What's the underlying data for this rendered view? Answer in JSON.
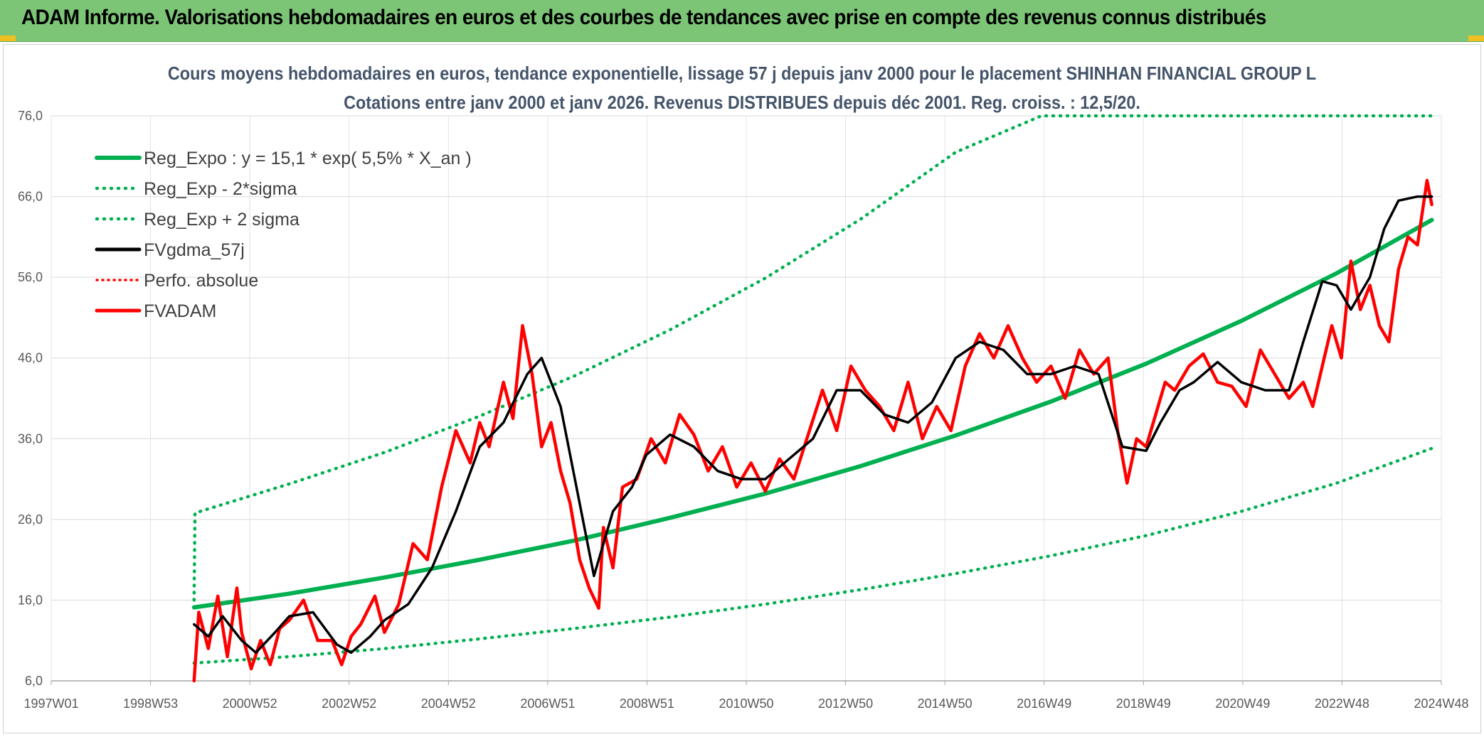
{
  "banner": {
    "title": "ADAM Informe. Valorisations hebdomadaires en euros et des courbes de tendances avec prise en compte des revenus connus distribués"
  },
  "colors": {
    "banner_bg": "#7cc576",
    "reg_expo": "#00b050",
    "fvgdma": "#000000",
    "fvadam": "#ff0000",
    "title": "#44546a"
  },
  "chart_data": {
    "type": "line",
    "title": "Cours moyens hebdomadaires en euros, tendance exponentielle, lissage 57 j depuis janv 2000 pour le placement SHINHAN FINANCIAL GROUP L",
    "subtitle": "Cotations entre janv 2000 et janv 2026. Revenus DISTRIBUES depuis déc 2001. Reg. croiss. : 12,5/20.",
    "xlabel": "",
    "ylabel": "",
    "x_ticks": [
      "1997W01",
      "1998W53",
      "2000W52",
      "2002W52",
      "2004W52",
      "2006W51",
      "2008W51",
      "2010W50",
      "2012W50",
      "2014W50",
      "2016W49",
      "2018W49",
      "2020W49",
      "2022W48",
      "2024W48"
    ],
    "y_ticks": [
      "76,0",
      "66,0",
      "56,0",
      "46,0",
      "36,0",
      "26,0",
      "16,0",
      "6,0"
    ],
    "ylim": [
      6,
      76
    ],
    "xlim": [
      1997.0,
      2026.2
    ],
    "grid": true,
    "legend_position": "top-left",
    "legend": [
      {
        "label": "Reg_Expo : y = 15,1 * exp( 5,5% *  X_an )",
        "color": "#00b050",
        "style": "solid"
      },
      {
        "label": "Reg_Exp - 2*sigma",
        "color": "#00b050",
        "style": "dotted"
      },
      {
        "label": "Reg_Exp + 2 sigma",
        "color": "#00b050",
        "style": "dotted"
      },
      {
        "label": "FVgdma_57j",
        "color": "#000000",
        "style": "solid"
      },
      {
        "label": "Perfo. absolue",
        "color": "#ff0000",
        "style": "dotted"
      },
      {
        "label": "FVADAM",
        "color": "#ff0000",
        "style": "solid"
      }
    ],
    "series": [
      {
        "name": "Reg_Expo : y = 15,1 * exp( 5,5% *  X_an )",
        "x": [
          2000.0,
          2002.0,
          2004.0,
          2006.0,
          2008.0,
          2010.0,
          2012.0,
          2014.0,
          2016.0,
          2018.0,
          2020.0,
          2022.0,
          2024.0,
          2026.0
        ],
        "values": [
          15.1,
          16.8,
          18.8,
          21.0,
          23.4,
          26.2,
          29.2,
          32.6,
          36.4,
          40.6,
          45.3,
          50.6,
          56.5,
          63.1
        ]
      },
      {
        "name": "Reg_Exp - 2*sigma",
        "x": [
          2000.0,
          2002.0,
          2004.0,
          2006.0,
          2008.0,
          2010.0,
          2012.0,
          2014.0,
          2016.0,
          2018.0,
          2020.0,
          2022.0,
          2024.0,
          2026.0
        ],
        "values": [
          8.2,
          9.0,
          10.0,
          11.2,
          12.5,
          13.9,
          15.5,
          17.3,
          19.3,
          21.5,
          24.0,
          27.0,
          30.5,
          34.8
        ]
      },
      {
        "name": "Reg_Exp + 2 sigma",
        "x": [
          2000.0,
          2000.02,
          2002.0,
          2004.0,
          2006.0,
          2008.0,
          2010.0,
          2012.0,
          2014.0,
          2016.0,
          2017.8,
          2026.0
        ],
        "values": [
          16.0,
          26.8,
          30.4,
          34.3,
          38.8,
          43.8,
          49.5,
          55.9,
          63.2,
          71.5,
          76.0,
          76.0
        ]
      },
      {
        "name": "FVgdma_57j",
        "x": [
          2000.0,
          2000.3,
          2000.6,
          2001.0,
          2001.3,
          2001.7,
          2002.0,
          2002.5,
          2003.0,
          2003.3,
          2003.7,
          2004.0,
          2004.5,
          2005.0,
          2005.5,
          2006.0,
          2006.5,
          2007.0,
          2007.3,
          2007.7,
          2008.0,
          2008.4,
          2008.8,
          2009.2,
          2009.5,
          2010.0,
          2010.5,
          2011.0,
          2011.5,
          2012.0,
          2012.5,
          2013.0,
          2013.5,
          2014.0,
          2014.5,
          2015.0,
          2015.5,
          2016.0,
          2016.5,
          2017.0,
          2017.5,
          2018.0,
          2018.5,
          2019.0,
          2019.5,
          2020.0,
          2020.3,
          2020.7,
          2021.0,
          2021.5,
          2022.0,
          2022.5,
          2023.0,
          2023.3,
          2023.7,
          2024.0,
          2024.3,
          2024.7,
          2025.0,
          2025.3,
          2025.7,
          2026.0
        ],
        "values": [
          13.0,
          11.5,
          14.0,
          11.0,
          9.5,
          12.0,
          14.0,
          14.5,
          10.5,
          9.5,
          11.5,
          13.5,
          15.5,
          20.0,
          27.0,
          35.0,
          38.0,
          44.0,
          46.0,
          40.0,
          31.0,
          19.0,
          27.0,
          30.0,
          34.0,
          36.5,
          35.0,
          32.0,
          31.0,
          31.0,
          33.5,
          36.0,
          42.0,
          42.0,
          39.0,
          38.0,
          40.5,
          46.0,
          48.0,
          47.0,
          44.0,
          44.0,
          45.0,
          44.0,
          35.0,
          34.5,
          38.0,
          42.0,
          43.0,
          45.5,
          43.0,
          42.0,
          42.0,
          48.0,
          55.5,
          55.0,
          52.0,
          56.0,
          62.0,
          65.5,
          66.0,
          66.0
        ]
      },
      {
        "name": "FVADAM",
        "x": [
          2000.0,
          2000.1,
          2000.3,
          2000.5,
          2000.7,
          2000.9,
          2001.0,
          2001.2,
          2001.4,
          2001.6,
          2001.8,
          2002.0,
          2002.3,
          2002.6,
          2002.9,
          2003.1,
          2003.3,
          2003.5,
          2003.8,
          2004.0,
          2004.3,
          2004.6,
          2004.9,
          2005.2,
          2005.5,
          2005.8,
          2006.0,
          2006.2,
          2006.5,
          2006.7,
          2006.9,
          2007.1,
          2007.3,
          2007.5,
          2007.7,
          2007.9,
          2008.1,
          2008.3,
          2008.5,
          2008.6,
          2008.8,
          2009.0,
          2009.3,
          2009.6,
          2009.9,
          2010.2,
          2010.5,
          2010.8,
          2011.1,
          2011.4,
          2011.7,
          2012.0,
          2012.3,
          2012.6,
          2012.9,
          2013.2,
          2013.5,
          2013.8,
          2014.1,
          2014.4,
          2014.7,
          2015.0,
          2015.3,
          2015.6,
          2015.9,
          2016.2,
          2016.5,
          2016.8,
          2017.1,
          2017.4,
          2017.7,
          2018.0,
          2018.3,
          2018.6,
          2018.9,
          2019.2,
          2019.4,
          2019.6,
          2019.8,
          2020.0,
          2020.2,
          2020.4,
          2020.6,
          2020.9,
          2021.2,
          2021.5,
          2021.8,
          2022.1,
          2022.4,
          2022.7,
          2023.0,
          2023.3,
          2023.5,
          2023.7,
          2023.9,
          2024.1,
          2024.3,
          2024.5,
          2024.7,
          2024.9,
          2025.1,
          2025.3,
          2025.5,
          2025.7,
          2025.9,
          2026.0
        ],
        "values": [
          6.0,
          14.5,
          10.0,
          16.5,
          9.0,
          17.5,
          12.0,
          7.5,
          11.0,
          8.0,
          12.5,
          13.5,
          16.0,
          11.0,
          11.0,
          8.0,
          11.5,
          13.0,
          16.5,
          12.0,
          15.5,
          23.0,
          21.0,
          30.0,
          37.0,
          33.0,
          38.0,
          35.0,
          43.0,
          38.5,
          50.0,
          44.0,
          35.0,
          38.0,
          32.0,
          28.0,
          21.0,
          17.5,
          15.0,
          25.0,
          20.0,
          30.0,
          31.0,
          36.0,
          33.0,
          39.0,
          36.5,
          32.0,
          35.0,
          30.0,
          33.0,
          29.5,
          33.5,
          31.0,
          36.5,
          42.0,
          37.0,
          45.0,
          42.0,
          40.0,
          37.0,
          43.0,
          36.0,
          40.0,
          37.0,
          45.0,
          49.0,
          46.0,
          50.0,
          46.0,
          43.0,
          45.0,
          41.0,
          47.0,
          44.0,
          46.0,
          37.0,
          30.5,
          36.0,
          35.0,
          39.0,
          43.0,
          42.0,
          45.0,
          46.5,
          43.0,
          42.5,
          40.0,
          47.0,
          44.0,
          41.0,
          43.0,
          40.0,
          45.0,
          50.0,
          46.0,
          58.0,
          52.0,
          55.0,
          50.0,
          48.0,
          57.0,
          61.0,
          60.0,
          68.0,
          65.0
        ]
      }
    ]
  }
}
